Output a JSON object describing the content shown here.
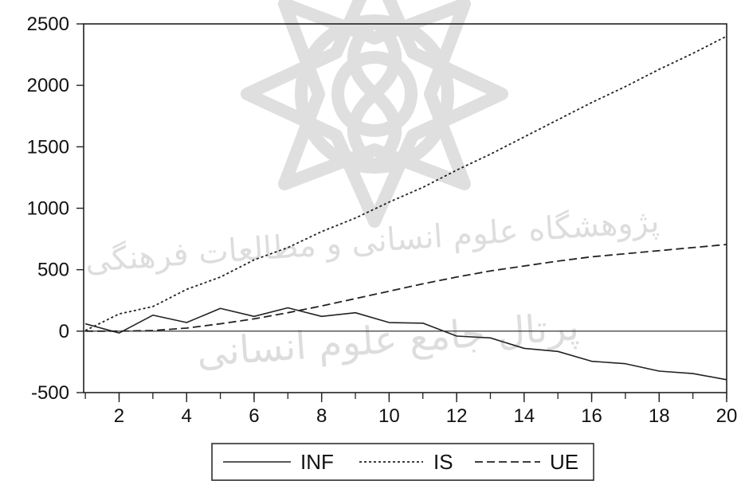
{
  "chart_data": {
    "type": "line",
    "x": [
      1,
      2,
      3,
      4,
      5,
      6,
      7,
      8,
      9,
      10,
      11,
      12,
      13,
      14,
      15,
      16,
      17,
      18,
      19,
      20
    ],
    "xticks": [
      2,
      4,
      6,
      8,
      10,
      12,
      14,
      16,
      18,
      20
    ],
    "xlim": [
      0.95,
      20
    ],
    "ylim": [
      -500,
      2500
    ],
    "yticks": [
      -500,
      0,
      500,
      1000,
      1500,
      2000,
      2500
    ],
    "grid": false,
    "zero_line": true,
    "legend_position": "bottom-center",
    "watermark": {
      "line1": "پژوهشگاه علوم انسانی و مطالعات فرهنگی",
      "line2": "پرتال جامع علوم انسانی"
    },
    "series": [
      {
        "name": "INF",
        "style": "solid",
        "color": "#222222",
        "values": [
          60,
          -15,
          130,
          70,
          185,
          120,
          190,
          120,
          150,
          70,
          65,
          -40,
          -55,
          -140,
          -165,
          -245,
          -265,
          -325,
          -345,
          -395
        ]
      },
      {
        "name": "IS",
        "style": "dotted",
        "color": "#222222",
        "values": [
          5,
          140,
          200,
          340,
          440,
          580,
          680,
          810,
          920,
          1050,
          1170,
          1310,
          1440,
          1580,
          1720,
          1860,
          1990,
          2130,
          2260,
          2400
        ]
      },
      {
        "name": "UE",
        "style": "dashed",
        "color": "#222222",
        "values": [
          0,
          0,
          5,
          25,
          60,
          100,
          150,
          205,
          265,
          325,
          385,
          440,
          490,
          530,
          570,
          605,
          630,
          655,
          680,
          705
        ]
      }
    ]
  }
}
